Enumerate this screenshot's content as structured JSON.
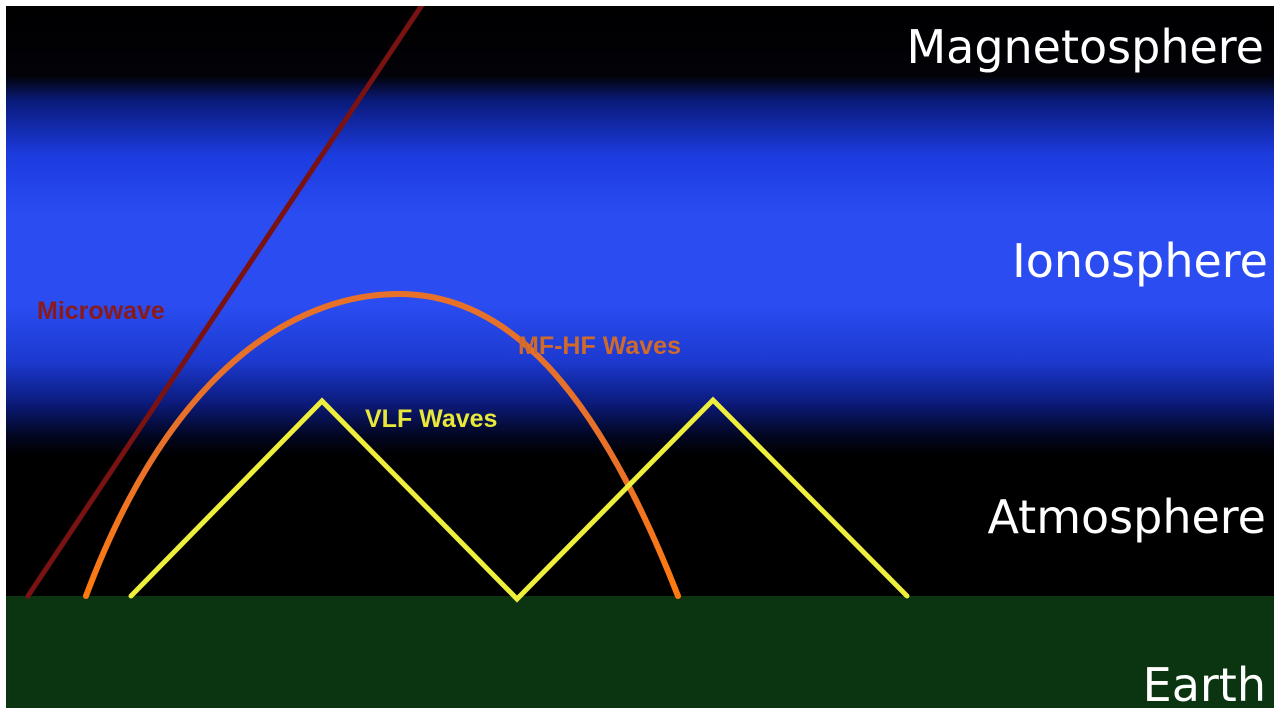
{
  "layers": {
    "magnetosphere": "Magnetosphere",
    "ionosphere": "Ionosphere",
    "atmosphere": "Atmosphere",
    "earth": "Earth"
  },
  "waves": {
    "microwave": {
      "label": "Microwave",
      "color": "#7a1212"
    },
    "mf_hf": {
      "label": "MF-HF Waves",
      "color": "#e8712a"
    },
    "vlf": {
      "label": "VLF Waves",
      "color": "#eeee3c"
    }
  },
  "colors": {
    "ionosphere": "#2a4cf0",
    "sky": "#000000",
    "earth": "#0a3510"
  }
}
